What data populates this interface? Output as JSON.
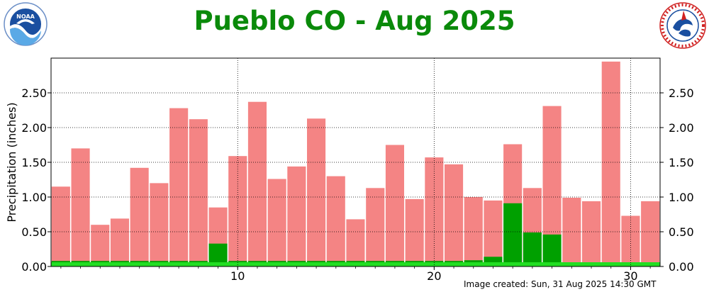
{
  "page": {
    "title": "Pueblo CO - Aug 2025",
    "footer": "Image created: Sun, 31 Aug 2025 14:30 GMT"
  },
  "logos": {
    "left": "noaa-logo",
    "right": "nws-logo"
  },
  "colors": {
    "normal": "#f48484",
    "observed": "#00a000",
    "base": "#22dd22",
    "title": "#0a8a0a"
  },
  "chart_data": {
    "type": "bar",
    "title": "Pueblo CO - Aug 2025",
    "xlabel": "",
    "ylabel": "Precipitation (inches)",
    "x": [
      1,
      2,
      3,
      4,
      5,
      6,
      7,
      8,
      9,
      10,
      11,
      12,
      13,
      14,
      15,
      16,
      17,
      18,
      19,
      20,
      21,
      22,
      23,
      24,
      25,
      26,
      27,
      28,
      29,
      30,
      31
    ],
    "xlim": [
      0.5,
      31.5
    ],
    "ylim": [
      0,
      3.0
    ],
    "xticks": [
      10,
      20,
      30
    ],
    "yticks": [
      0.0,
      0.5,
      1.0,
      1.5,
      2.0,
      2.5
    ],
    "ytick_labels": [
      "0.00",
      "0.50",
      "1.00",
      "1.50",
      "2.00",
      "2.50"
    ],
    "grid": true,
    "series": [
      {
        "values": [
          1.15,
          1.7,
          0.6,
          0.69,
          1.42,
          1.2,
          2.28,
          2.12,
          0.85,
          1.59,
          2.37,
          1.26,
          1.44,
          2.13,
          1.3,
          0.68,
          1.13,
          1.75,
          0.97,
          1.57,
          1.47,
          1.0,
          0.95,
          1.76,
          1.13,
          2.31,
          0.99,
          0.94,
          2.95,
          0.73,
          0.94
        ],
        "color": "#f48484"
      },
      {
        "values": [
          0.08,
          0.08,
          0.08,
          0.08,
          0.08,
          0.08,
          0.08,
          0.08,
          0.33,
          0.08,
          0.08,
          0.08,
          0.08,
          0.08,
          0.08,
          0.08,
          0.08,
          0.08,
          0.08,
          0.08,
          0.08,
          0.09,
          0.14,
          0.91,
          0.49,
          0.46,
          0.05,
          0.05,
          0.05,
          0.05,
          0.05
        ],
        "color": "#00a000"
      }
    ]
  }
}
